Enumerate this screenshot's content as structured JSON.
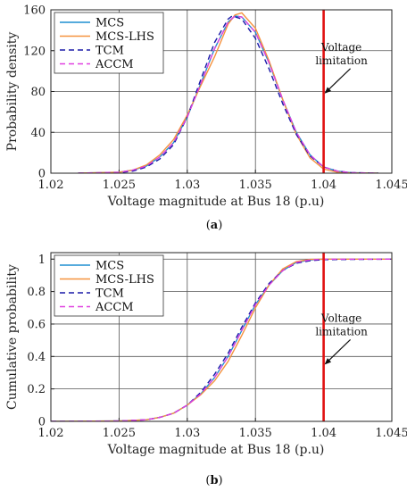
{
  "chart_data": [
    {
      "type": "line",
      "caption_label": "a",
      "xlabel": "Voltage magnitude at Bus 18 (p.u)",
      "ylabel": "Probability density",
      "xlim": [
        1.02,
        1.045
      ],
      "ylim": [
        0,
        160
      ],
      "xticks": [
        "1.02",
        "1.025",
        "1.03",
        "1.035",
        "1.04",
        "1.045"
      ],
      "yticks": [
        "0",
        "40",
        "80",
        "120",
        "160"
      ],
      "grid": true,
      "legend_position": "top-left",
      "annotation": {
        "text_lines": [
          "Voltage",
          "limitation"
        ],
        "x": 1.04,
        "y": 78
      },
      "limit_line_x": 1.04,
      "series": [
        {
          "name": "MCS",
          "color": "#1f8fd0",
          "dash": "solid",
          "x": [
            1.022,
            1.025,
            1.026,
            1.027,
            1.028,
            1.029,
            1.03,
            1.031,
            1.032,
            1.033,
            1.0335,
            1.034,
            1.035,
            1.036,
            1.037,
            1.038,
            1.039,
            1.04,
            1.041,
            1.042,
            1.044
          ],
          "y": [
            0,
            1,
            3,
            7,
            16,
            30,
            55,
            88,
            122,
            148,
            154,
            153,
            138,
            108,
            72,
            40,
            18,
            6,
            2,
            0.5,
            0
          ]
        },
        {
          "name": "MCS-LHS",
          "color": "#f5923e",
          "dash": "solid",
          "x": [
            1.022,
            1.025,
            1.026,
            1.027,
            1.028,
            1.029,
            1.03,
            1.031,
            1.032,
            1.033,
            1.0335,
            1.034,
            1.035,
            1.036,
            1.037,
            1.038,
            1.039,
            1.04,
            1.041,
            1.042,
            1.044
          ],
          "y": [
            0,
            1,
            3,
            8,
            18,
            33,
            57,
            86,
            114,
            146,
            155,
            157,
            142,
            110,
            72,
            38,
            15,
            4,
            1,
            0.3,
            0
          ]
        },
        {
          "name": "TCM",
          "color": "#1a1aa8",
          "dash": "dashed",
          "x": [
            1.022,
            1.025,
            1.026,
            1.027,
            1.028,
            1.029,
            1.03,
            1.031,
            1.032,
            1.033,
            1.0333,
            1.034,
            1.035,
            1.036,
            1.037,
            1.038,
            1.039,
            1.04,
            1.041,
            1.042,
            1.044
          ],
          "y": [
            0,
            0.5,
            2,
            6,
            14,
            28,
            55,
            92,
            128,
            151,
            154,
            151,
            132,
            102,
            68,
            38,
            17,
            6,
            2,
            0.5,
            0
          ]
        },
        {
          "name": "ACCM",
          "color": "#e040e0",
          "dash": "dashed",
          "x": [
            1.022,
            1.025,
            1.026,
            1.027,
            1.028,
            1.029,
            1.03,
            1.031,
            1.032,
            1.033,
            1.0335,
            1.034,
            1.035,
            1.036,
            1.037,
            1.038,
            1.039,
            1.04,
            1.041,
            1.042,
            1.044
          ],
          "y": [
            0,
            1,
            3,
            7,
            16,
            30,
            55,
            88,
            122,
            148,
            154,
            153,
            138,
            108,
            72,
            40,
            18,
            6,
            2,
            0.5,
            0
          ]
        }
      ]
    },
    {
      "type": "line",
      "caption_label": "b",
      "xlabel": "Voltage magnitude at Bus 18 (p.u)",
      "ylabel": "Cumulative probability",
      "xlim": [
        1.02,
        1.045
      ],
      "ylim": [
        0,
        1.04
      ],
      "xticks": [
        "1.02",
        "1.025",
        "1.03",
        "1.035",
        "1.04",
        "1.045"
      ],
      "yticks": [
        "0",
        "0.2",
        "0.4",
        "0.6",
        "0.8",
        "1"
      ],
      "grid": true,
      "legend_position": "top-left",
      "annotation": {
        "text_lines": [
          "Voltage",
          "limitation"
        ],
        "x": 1.04,
        "y": 0.35
      },
      "limit_line_x": 1.04,
      "series": [
        {
          "name": "MCS",
          "color": "#1f8fd0",
          "dash": "solid",
          "x": [
            1.02,
            1.025,
            1.027,
            1.028,
            1.029,
            1.03,
            1.031,
            1.032,
            1.033,
            1.034,
            1.035,
            1.036,
            1.037,
            1.038,
            1.039,
            1.04,
            1.045
          ],
          "y": [
            0,
            0.002,
            0.01,
            0.025,
            0.05,
            0.1,
            0.17,
            0.27,
            0.4,
            0.56,
            0.72,
            0.84,
            0.93,
            0.98,
            0.995,
            1.0,
            1.0
          ]
        },
        {
          "name": "MCS-LHS",
          "color": "#f5923e",
          "dash": "solid",
          "x": [
            1.02,
            1.025,
            1.027,
            1.028,
            1.029,
            1.03,
            1.031,
            1.032,
            1.033,
            1.034,
            1.035,
            1.036,
            1.037,
            1.038,
            1.039,
            1.04,
            1.045
          ],
          "y": [
            0,
            0.002,
            0.01,
            0.025,
            0.05,
            0.1,
            0.165,
            0.25,
            0.37,
            0.53,
            0.7,
            0.84,
            0.94,
            0.985,
            0.998,
            1.0,
            1.0
          ]
        },
        {
          "name": "TCM",
          "color": "#1a1aa8",
          "dash": "dashed",
          "x": [
            1.02,
            1.025,
            1.027,
            1.028,
            1.029,
            1.03,
            1.031,
            1.032,
            1.033,
            1.034,
            1.035,
            1.036,
            1.037,
            1.038,
            1.039,
            1.04,
            1.045
          ],
          "y": [
            0,
            0.002,
            0.01,
            0.025,
            0.05,
            0.1,
            0.18,
            0.29,
            0.42,
            0.58,
            0.73,
            0.85,
            0.93,
            0.975,
            0.99,
            0.997,
            1.0
          ]
        },
        {
          "name": "ACCM",
          "color": "#e040e0",
          "dash": "dashed",
          "x": [
            1.02,
            1.025,
            1.027,
            1.028,
            1.029,
            1.03,
            1.031,
            1.032,
            1.033,
            1.034,
            1.035,
            1.036,
            1.037,
            1.038,
            1.039,
            1.04,
            1.045
          ],
          "y": [
            0,
            0.002,
            0.01,
            0.025,
            0.05,
            0.1,
            0.17,
            0.27,
            0.4,
            0.56,
            0.72,
            0.84,
            0.93,
            0.98,
            0.995,
            1.0,
            1.0
          ]
        }
      ]
    }
  ]
}
